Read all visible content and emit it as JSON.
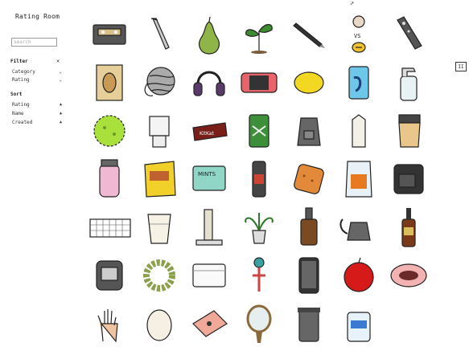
{
  "app": {
    "title": "Rating Room"
  },
  "search": {
    "placeholder": "search",
    "value": ""
  },
  "filter": {
    "heading": "Filter",
    "clear_icon": "close-icon",
    "options": [
      {
        "label": "Category",
        "icon": "chevron-down-icon"
      },
      {
        "label": "Rating",
        "icon": "chevron-down-icon"
      }
    ]
  },
  "sort": {
    "heading": "Sort",
    "options": [
      {
        "label": "Rating",
        "icon": "sort-up-icon"
      },
      {
        "label": "Name",
        "icon": "sort-up-icon"
      },
      {
        "label": "Created",
        "icon": "sort-up-icon"
      }
    ]
  },
  "controls": {
    "pause_label": "II"
  },
  "items": [
    {
      "name": "tape-cassette"
    },
    {
      "name": "allen-key"
    },
    {
      "name": "pear"
    },
    {
      "name": "plant-sprout"
    },
    {
      "name": "pen"
    },
    {
      "name": "face-vs-bee",
      "caption": "VS"
    },
    {
      "name": "tv-remote"
    },
    {
      "name": "peanut-bag"
    },
    {
      "name": "yarn-ball"
    },
    {
      "name": "headphones"
    },
    {
      "name": "nintendo-switch"
    },
    {
      "name": "lemon"
    },
    {
      "name": "blue-can"
    },
    {
      "name": "spray-bottle"
    },
    {
      "name": "green-bath-bomb"
    },
    {
      "name": "lamp"
    },
    {
      "name": "candy-bar"
    },
    {
      "name": "green-can"
    },
    {
      "name": "hiking-backpack"
    },
    {
      "name": "milk-carton"
    },
    {
      "name": "coffee-maker"
    },
    {
      "name": "water-bottle"
    },
    {
      "name": "chips-bag"
    },
    {
      "name": "mints-tin"
    },
    {
      "name": "thermos"
    },
    {
      "name": "cracker"
    },
    {
      "name": "snack-bag"
    },
    {
      "name": "air-fryer"
    },
    {
      "name": "keyboard"
    },
    {
      "name": "glass-of-milk"
    },
    {
      "name": "scratching-post"
    },
    {
      "name": "potted-plant"
    },
    {
      "name": "brown-bottle"
    },
    {
      "name": "gooseneck-kettle"
    },
    {
      "name": "hot-sauce"
    },
    {
      "name": "watch"
    },
    {
      "name": "wreath"
    },
    {
      "name": "white-box"
    },
    {
      "name": "kendama"
    },
    {
      "name": "smartphone"
    },
    {
      "name": "red-apple"
    },
    {
      "name": "pet-bed"
    },
    {
      "name": "hand"
    },
    {
      "name": "egg"
    },
    {
      "name": "pink-laptop"
    },
    {
      "name": "hand-mirror"
    },
    {
      "name": "trash-can"
    },
    {
      "name": "wipes-tub"
    }
  ]
}
